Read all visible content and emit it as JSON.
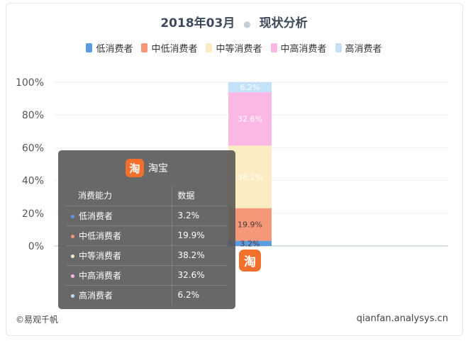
{
  "chart_data": {
    "type": "bar",
    "stacked": true,
    "title_main": "2018年03月",
    "title_sub": "现状分析",
    "categories": [
      "淘宝"
    ],
    "ylim": [
      0,
      100
    ],
    "yticks": [
      "0%",
      "20%",
      "40%",
      "60%",
      "80%",
      "100%"
    ],
    "legend_position": "top",
    "grid": true,
    "series": [
      {
        "name": "低消费者",
        "values": [
          3.2
        ],
        "color": "#5b9be0"
      },
      {
        "name": "中低消费者",
        "values": [
          19.9
        ],
        "color": "#f59779"
      },
      {
        "name": "中等消费者",
        "values": [
          38.2
        ],
        "color": "#fcecc3"
      },
      {
        "name": "中高消费者",
        "values": [
          32.6
        ],
        "color": "#fbb8e4"
      },
      {
        "name": "高消费者",
        "values": [
          6.2
        ],
        "color": "#c4e1fa"
      }
    ],
    "data_labels": [
      "3.2%",
      "19.9%",
      "38.2%",
      "32.6%",
      "6.2%"
    ]
  },
  "tooltip": {
    "app_icon_char": "淘",
    "app_name": "淘宝",
    "col1_header": "消费能力",
    "col2_header": "数据",
    "rows": [
      {
        "label": "低消费者",
        "value": "3.2%",
        "color": "#5b9be0"
      },
      {
        "label": "中低消费者",
        "value": "19.9%",
        "color": "#f59779"
      },
      {
        "label": "中等消费者",
        "value": "38.2%",
        "color": "#fcecc3"
      },
      {
        "label": "中高消费者",
        "value": "32.6%",
        "color": "#fbb8e4"
      },
      {
        "label": "高消费者",
        "value": "6.2%",
        "color": "#c4e1fa"
      }
    ]
  },
  "bar_icon_char": "淘",
  "footer": {
    "left": "©易观千帆",
    "right": "qianfan.analysys.cn"
  }
}
